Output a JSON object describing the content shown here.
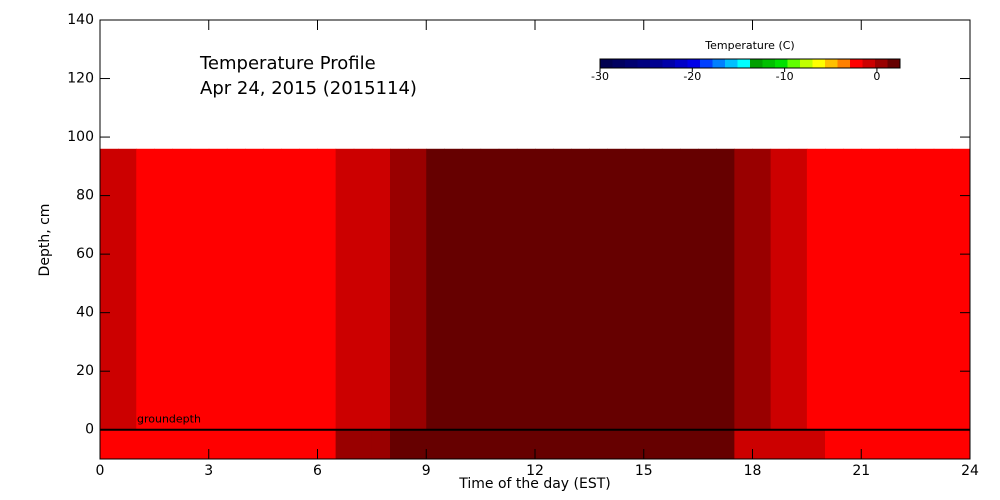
{
  "chart_data": {
    "type": "heatmap",
    "title": "Temperature Profile",
    "subtitle": "Apr 24, 2015 (2015114)",
    "x_label": "Time of the day (EST)",
    "y_label": "Depth, cm",
    "xlim": [
      0,
      24
    ],
    "xticks": [
      0,
      3,
      6,
      9,
      12,
      15,
      18,
      21,
      24
    ],
    "ylim": [
      -10,
      140
    ],
    "yticks": [
      0,
      20,
      40,
      60,
      80,
      100,
      120,
      140
    ],
    "x": [
      0,
      0.5,
      1,
      1.5,
      2,
      2.5,
      3,
      3.5,
      4,
      4.5,
      5,
      5.5,
      6,
      6.5,
      7,
      7.5,
      8,
      8.5,
      9,
      9.5,
      10,
      10.5,
      11,
      11.5,
      12,
      12.5,
      13,
      13.5,
      14,
      14.5,
      15,
      15.5,
      16,
      16.5,
      17,
      17.5,
      18,
      18.5,
      19,
      19.5,
      20,
      20.5,
      21,
      21.5,
      22,
      22.5,
      23,
      23.5,
      24
    ],
    "y": [
      -10,
      0,
      96
    ],
    "values": [
      [
        -2,
        -2,
        -2,
        -2,
        -2,
        -2,
        -2,
        -2,
        -2,
        -2,
        -2,
        -2,
        -2,
        0.5,
        0.5,
        0.5,
        2,
        2,
        2,
        2,
        2,
        2,
        2,
        2,
        2,
        2,
        2,
        2,
        2,
        2,
        2,
        2,
        2,
        2,
        2,
        -1,
        -1,
        -1,
        -1,
        -1,
        -2,
        -2,
        -2,
        -2,
        -2,
        -2,
        -2,
        -2
      ],
      [
        -1,
        -1,
        -2,
        -2,
        -2,
        -2,
        -2,
        -2,
        -2,
        -2,
        -2,
        -2,
        -2,
        -1,
        -1,
        -1,
        0.5,
        0.5,
        2,
        2,
        2,
        2,
        2,
        2,
        2,
        2,
        2,
        2,
        2,
        2,
        2,
        2,
        2,
        2,
        2,
        0.5,
        0.5,
        -1,
        -1,
        -2,
        -2,
        -2,
        -2,
        -2,
        -2,
        -2,
        -2,
        -2
      ]
    ],
    "ground_line": {
      "value": 0,
      "label": "groundepth"
    },
    "colorbar": {
      "title": "Temperature (C)",
      "lim": [
        -30,
        2.5
      ],
      "ticks": [
        -30,
        -20,
        -10,
        0
      ],
      "colors": [
        "#000050",
        "#000060",
        "#000070",
        "#000080",
        "#000090",
        "#0000a8",
        "#0000c8",
        "#0000e8",
        "#0040ff",
        "#0080ff",
        "#00c0ff",
        "#00ffff",
        "#00a000",
        "#00c000",
        "#00e000",
        "#60ff00",
        "#c0ff00",
        "#ffff00",
        "#ffc000",
        "#ff8000",
        "#ff0000",
        "#cc0000",
        "#990000",
        "#660000"
      ]
    }
  }
}
